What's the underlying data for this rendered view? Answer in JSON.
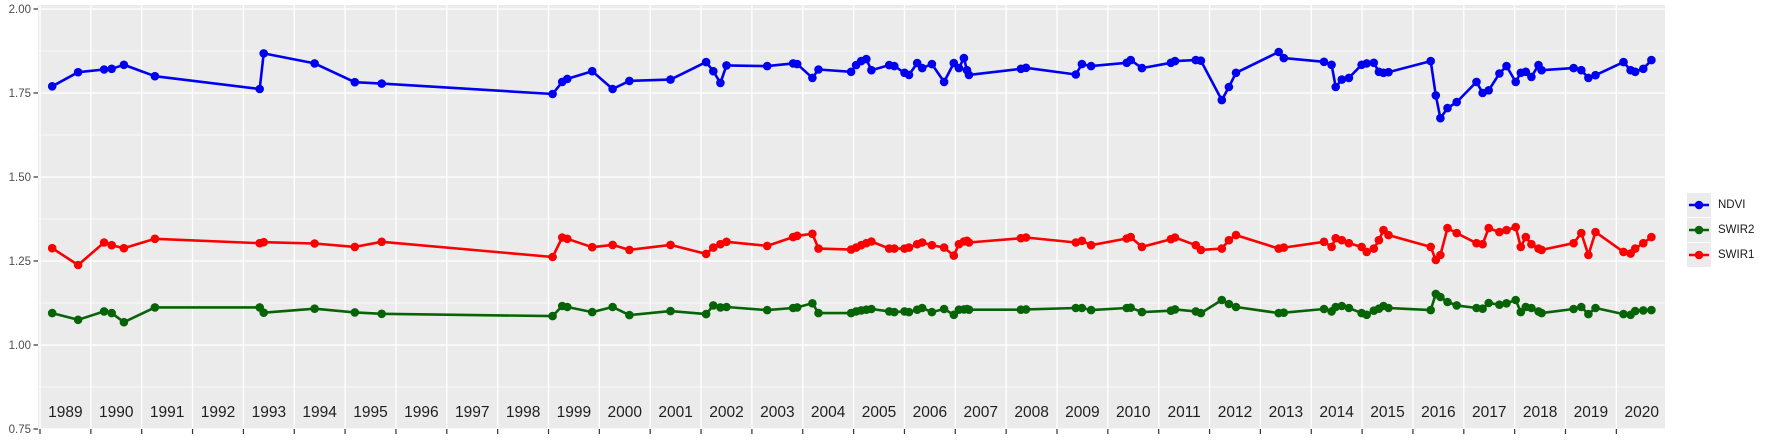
{
  "figure": {
    "background": "#FFFFFF",
    "panel_background": "#EBEBEB",
    "gridline_color": "#FFFFFF",
    "tick_color": "#333333",
    "y_axis_text_color": "#4D4D4D",
    "x_axis_text_color": "#1F1F1F"
  },
  "chart_data": {
    "type": "line",
    "title": "",
    "xlabel": "",
    "ylabel": "",
    "grid": true,
    "legend_position": "right",
    "xlim": [
      1988.96,
      2020.93
    ],
    "ylim": [
      0.75,
      2.012
    ],
    "x_tick_labels": [
      "1989",
      "1990",
      "1991",
      "1992",
      "1993",
      "1994",
      "1995",
      "1996",
      "1997",
      "1998",
      "1999",
      "2000",
      "2001",
      "2002",
      "2003",
      "2004",
      "2005",
      "2006",
      "2007",
      "2008",
      "2009",
      "2010",
      "2011",
      "2012",
      "2013",
      "2014",
      "2015",
      "2016",
      "2017",
      "2018",
      "2019",
      "2020"
    ],
    "y_ticks": [
      0.75,
      1.0,
      1.25,
      1.5,
      1.75,
      2.0
    ],
    "y_tick_labels": [
      "0.75",
      "1.00",
      "1.25",
      "1.50",
      "1.75",
      "2.00"
    ],
    "y_minor_ticks": [
      0.875,
      1.125,
      1.375,
      1.625,
      1.875
    ],
    "dates": [
      1989.24,
      1989.75,
      1990.26,
      1990.41,
      1990.65,
      1991.26,
      1993.32,
      1993.4,
      1994.4,
      1995.19,
      1995.72,
      1999.08,
      1999.27,
      1999.37,
      1999.86,
      2000.26,
      2000.59,
      2001.4,
      2002.1,
      2002.24,
      2002.38,
      2002.5,
      2003.3,
      2003.81,
      2003.89,
      2004.19,
      2004.31,
      2004.95,
      2005.05,
      2005.15,
      2005.25,
      2005.35,
      2005.7,
      2005.8,
      2006.0,
      2006.09,
      2006.25,
      2006.35,
      2006.54,
      2006.78,
      2006.97,
      2007.07,
      2007.17,
      2007.23,
      2007.27,
      2008.29,
      2008.39,
      2009.37,
      2009.49,
      2009.67,
      2010.37,
      2010.45,
      2010.67,
      2011.24,
      2011.32,
      2011.73,
      2011.83,
      2012.24,
      2012.38,
      2012.52,
      2013.36,
      2013.46,
      2014.25,
      2014.4,
      2014.48,
      2014.6,
      2014.74,
      2014.99,
      2015.09,
      2015.23,
      2015.33,
      2015.42,
      2015.52,
      2016.35,
      2016.45,
      2016.54,
      2016.68,
      2016.86,
      2017.25,
      2017.37,
      2017.49,
      2017.7,
      2017.84,
      2018.02,
      2018.12,
      2018.22,
      2018.33,
      2018.47,
      2018.53,
      2019.16,
      2019.31,
      2019.45,
      2019.59,
      2020.14,
      2020.28,
      2020.37,
      2020.53,
      2020.69
    ],
    "series": [
      {
        "name": "NDVI",
        "color": "#0000F0",
        "values": [
          1.77,
          1.812,
          1.82,
          1.822,
          1.834,
          1.8,
          1.762,
          1.868,
          1.838,
          1.782,
          1.778,
          1.747,
          1.783,
          1.792,
          1.815,
          1.762,
          1.786,
          1.79,
          1.842,
          1.815,
          1.78,
          1.832,
          1.83,
          1.838,
          1.836,
          1.795,
          1.82,
          1.813,
          1.833,
          1.845,
          1.851,
          1.818,
          1.833,
          1.83,
          1.81,
          1.804,
          1.839,
          1.824,
          1.836,
          1.783,
          1.839,
          1.824,
          1.854,
          1.818,
          1.804,
          1.822,
          1.825,
          1.805,
          1.836,
          1.83,
          1.84,
          1.848,
          1.824,
          1.84,
          1.845,
          1.848,
          1.846,
          1.729,
          1.768,
          1.81,
          1.872,
          1.854,
          1.843,
          1.834,
          1.768,
          1.79,
          1.795,
          1.834,
          1.838,
          1.84,
          1.813,
          1.81,
          1.812,
          1.845,
          1.743,
          1.675,
          1.705,
          1.723,
          1.783,
          1.75,
          1.758,
          1.808,
          1.83,
          1.783,
          1.81,
          1.813,
          1.798,
          1.833,
          1.818,
          1.824,
          1.818,
          1.795,
          1.803,
          1.842,
          1.818,
          1.813,
          1.822,
          1.848
        ]
      },
      {
        "name": "SWIR2",
        "color": "#066406",
        "values": [
          1.095,
          1.075,
          1.1,
          1.095,
          1.068,
          1.112,
          1.112,
          1.096,
          1.108,
          1.097,
          1.093,
          1.086,
          1.116,
          1.113,
          1.098,
          1.113,
          1.089,
          1.101,
          1.092,
          1.118,
          1.112,
          1.113,
          1.104,
          1.11,
          1.112,
          1.124,
          1.095,
          1.095,
          1.1,
          1.103,
          1.105,
          1.107,
          1.1,
          1.098,
          1.1,
          1.098,
          1.105,
          1.11,
          1.098,
          1.107,
          1.09,
          1.105,
          1.106,
          1.107,
          1.105,
          1.105,
          1.106,
          1.11,
          1.11,
          1.104,
          1.11,
          1.111,
          1.098,
          1.102,
          1.106,
          1.1,
          1.095,
          1.134,
          1.122,
          1.113,
          1.095,
          1.096,
          1.107,
          1.1,
          1.113,
          1.116,
          1.11,
          1.095,
          1.09,
          1.102,
          1.108,
          1.116,
          1.11,
          1.104,
          1.152,
          1.143,
          1.128,
          1.118,
          1.11,
          1.108,
          1.125,
          1.12,
          1.124,
          1.134,
          1.098,
          1.113,
          1.11,
          1.1,
          1.095,
          1.107,
          1.113,
          1.092,
          1.11,
          1.092,
          1.09,
          1.101,
          1.103,
          1.104
        ]
      },
      {
        "name": "SWIR1",
        "color": "#FA0000",
        "values": [
          1.288,
          1.238,
          1.305,
          1.297,
          1.288,
          1.316,
          1.303,
          1.306,
          1.302,
          1.292,
          1.307,
          1.262,
          1.32,
          1.316,
          1.291,
          1.298,
          1.283,
          1.298,
          1.271,
          1.29,
          1.3,
          1.307,
          1.295,
          1.321,
          1.325,
          1.331,
          1.287,
          1.284,
          1.29,
          1.297,
          1.303,
          1.308,
          1.287,
          1.287,
          1.287,
          1.29,
          1.3,
          1.305,
          1.297,
          1.29,
          1.266,
          1.3,
          1.308,
          1.31,
          1.305,
          1.318,
          1.32,
          1.305,
          1.31,
          1.297,
          1.317,
          1.321,
          1.292,
          1.315,
          1.32,
          1.297,
          1.283,
          1.287,
          1.312,
          1.327,
          1.287,
          1.29,
          1.307,
          1.292,
          1.318,
          1.312,
          1.303,
          1.292,
          1.277,
          1.287,
          1.312,
          1.342,
          1.327,
          1.292,
          1.253,
          1.268,
          1.348,
          1.333,
          1.303,
          1.3,
          1.348,
          1.336,
          1.342,
          1.351,
          1.292,
          1.321,
          1.3,
          1.287,
          1.283,
          1.303,
          1.333,
          1.268,
          1.336,
          1.277,
          1.272,
          1.287,
          1.303,
          1.321
        ]
      }
    ],
    "legend": {
      "key_fill": "#EBEBEB",
      "entries": [
        {
          "label": "NDVI",
          "color": "#0000F0"
        },
        {
          "label": "SWIR2",
          "color": "#066406"
        },
        {
          "label": "SWIR1",
          "color": "#FA0000"
        }
      ]
    }
  }
}
